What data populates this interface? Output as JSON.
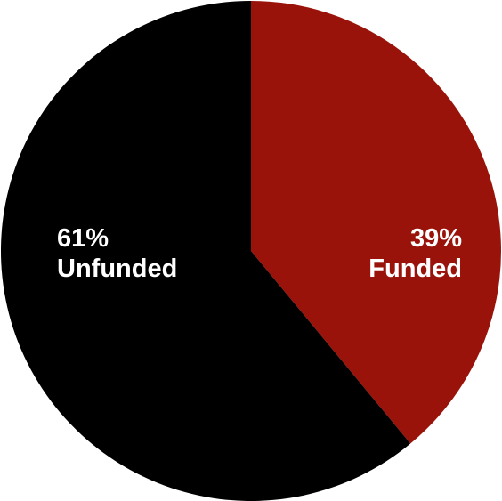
{
  "chart_data": {
    "type": "pie",
    "start": "top",
    "direction": "clockwise",
    "slices": [
      {
        "label": "Funded",
        "value": 39,
        "display": "39%",
        "color": "#9a130a"
      },
      {
        "label": "Unfunded",
        "value": 61,
        "display": "61%",
        "color": "#000000"
      }
    ]
  }
}
